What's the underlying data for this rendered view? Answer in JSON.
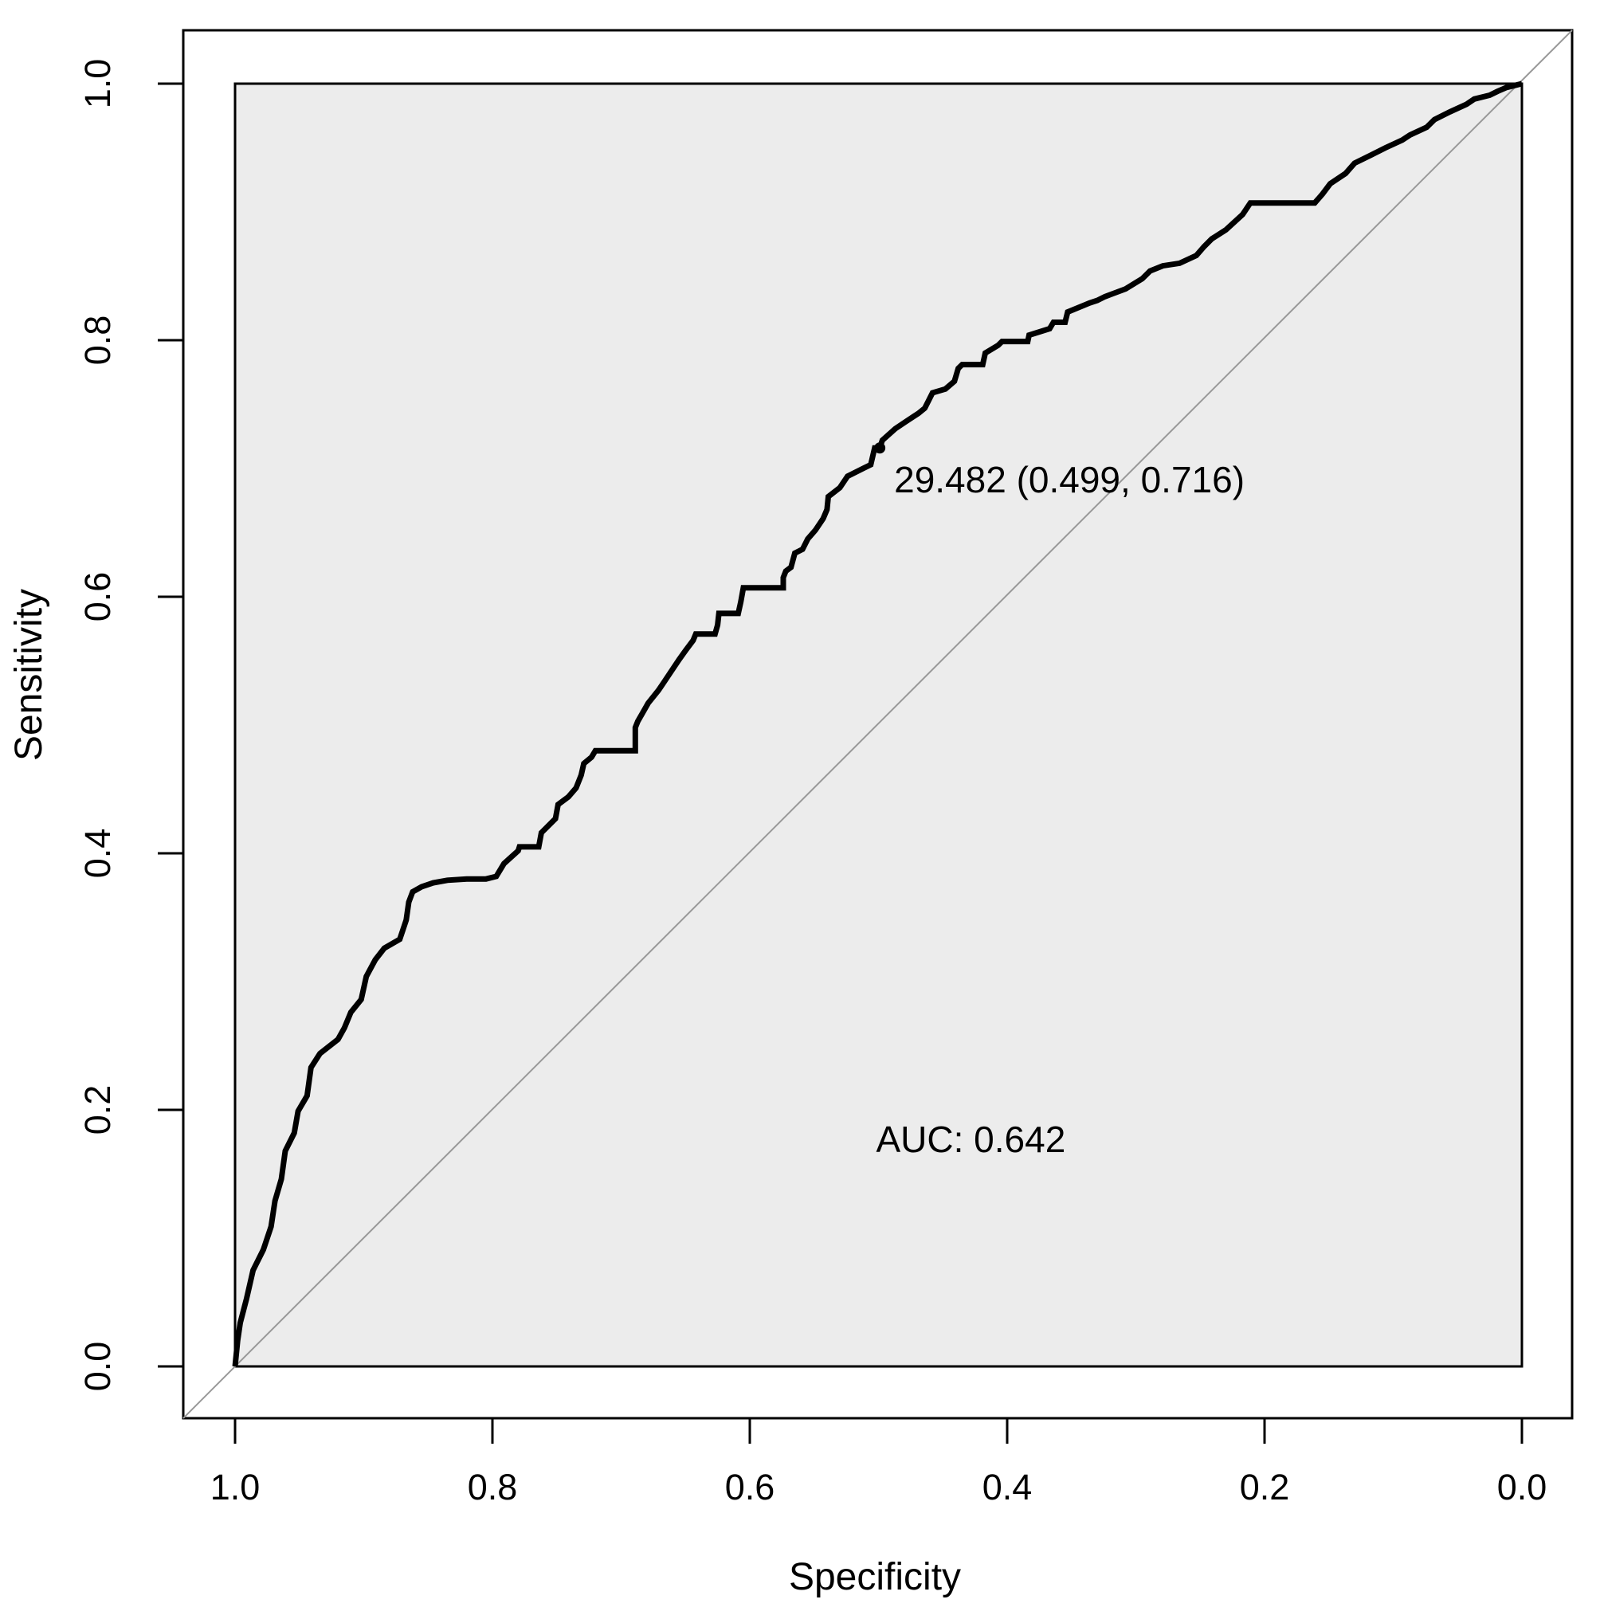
{
  "chart_data": {
    "type": "line",
    "subtype": "roc-curve",
    "xlabel": "Specificity",
    "ylabel": "Sensitivity",
    "x_axis": {
      "reversed": true,
      "range": [
        1.0,
        0.0
      ],
      "tick_values": [
        1.0,
        0.8,
        0.6,
        0.4,
        0.2,
        0.0
      ],
      "tick_labels": [
        "1.0",
        "0.8",
        "0.6",
        "0.4",
        "0.2",
        "0.0"
      ]
    },
    "y_axis": {
      "range": [
        0.0,
        1.0
      ],
      "tick_values": [
        0.0,
        0.2,
        0.4,
        0.6,
        0.8,
        1.0
      ],
      "tick_labels": [
        "0.0",
        "0.2",
        "0.4",
        "0.6",
        "0.8",
        "1.0"
      ]
    },
    "grid": false,
    "shaded_unit_square": true,
    "identity_line": true,
    "auc": {
      "label": "AUC: 0.642",
      "value": 0.642,
      "anchor": {
        "specificity": 0.5,
        "sensitivity": 0.177
      }
    },
    "threshold": {
      "label": "29.482 (0.499, 0.716)",
      "threshold_value": 29.482,
      "specificity": 0.499,
      "sensitivity": 0.716
    },
    "colors": {
      "curve": "#000000",
      "plot_fill": "#ececec",
      "plot_border": "#000000",
      "identity_line": "#999999",
      "text": "#000000",
      "background": "#ffffff"
    },
    "series": [
      {
        "name": "ROC curve",
        "points_format": [
          "specificity",
          "sensitivity"
        ],
        "points": [
          [
            1.0,
            0.0
          ],
          [
            0.998,
            0.02
          ],
          [
            0.996,
            0.034
          ],
          [
            0.991,
            0.053
          ],
          [
            0.986,
            0.075
          ],
          [
            0.978,
            0.091
          ],
          [
            0.972,
            0.109
          ],
          [
            0.969,
            0.129
          ],
          [
            0.964,
            0.146
          ],
          [
            0.961,
            0.168
          ],
          [
            0.954,
            0.182
          ],
          [
            0.951,
            0.199
          ],
          [
            0.944,
            0.211
          ],
          [
            0.941,
            0.233
          ],
          [
            0.934,
            0.244
          ],
          [
            0.92,
            0.255
          ],
          [
            0.915,
            0.264
          ],
          [
            0.91,
            0.276
          ],
          [
            0.902,
            0.286
          ],
          [
            0.898,
            0.304
          ],
          [
            0.891,
            0.317
          ],
          [
            0.884,
            0.326
          ],
          [
            0.872,
            0.333
          ],
          [
            0.867,
            0.348
          ],
          [
            0.865,
            0.362
          ],
          [
            0.862,
            0.37
          ],
          [
            0.855,
            0.374
          ],
          [
            0.846,
            0.377
          ],
          [
            0.835,
            0.379
          ],
          [
            0.82,
            0.38
          ],
          [
            0.805,
            0.38
          ],
          [
            0.797,
            0.382
          ],
          [
            0.791,
            0.392
          ],
          [
            0.78,
            0.402
          ],
          [
            0.779,
            0.405
          ],
          [
            0.764,
            0.405
          ],
          [
            0.762,
            0.416
          ],
          [
            0.751,
            0.427
          ],
          [
            0.749,
            0.438
          ],
          [
            0.741,
            0.444
          ],
          [
            0.735,
            0.451
          ],
          [
            0.731,
            0.461
          ],
          [
            0.729,
            0.47
          ],
          [
            0.723,
            0.475
          ],
          [
            0.72,
            0.48
          ],
          [
            0.689,
            0.48
          ],
          [
            0.689,
            0.498
          ],
          [
            0.687,
            0.503
          ],
          [
            0.683,
            0.51
          ],
          [
            0.679,
            0.517
          ],
          [
            0.671,
            0.527
          ],
          [
            0.667,
            0.533
          ],
          [
            0.663,
            0.539
          ],
          [
            0.655,
            0.551
          ],
          [
            0.65,
            0.558
          ],
          [
            0.644,
            0.566
          ],
          [
            0.642,
            0.571
          ],
          [
            0.627,
            0.571
          ],
          [
            0.625,
            0.578
          ],
          [
            0.624,
            0.587
          ],
          [
            0.609,
            0.587
          ],
          [
            0.607,
            0.596
          ],
          [
            0.605,
            0.607
          ],
          [
            0.574,
            0.607
          ],
          [
            0.574,
            0.615
          ],
          [
            0.572,
            0.62
          ],
          [
            0.568,
            0.623
          ],
          [
            0.565,
            0.634
          ],
          [
            0.559,
            0.637
          ],
          [
            0.555,
            0.645
          ],
          [
            0.549,
            0.652
          ],
          [
            0.543,
            0.661
          ],
          [
            0.54,
            0.668
          ],
          [
            0.539,
            0.678
          ],
          [
            0.53,
            0.685
          ],
          [
            0.524,
            0.694
          ],
          [
            0.512,
            0.7
          ],
          [
            0.506,
            0.703
          ],
          [
            0.503,
            0.716
          ],
          [
            0.499,
            0.716
          ],
          [
            0.497,
            0.722
          ],
          [
            0.487,
            0.731
          ],
          [
            0.478,
            0.737
          ],
          [
            0.469,
            0.743
          ],
          [
            0.464,
            0.747
          ],
          [
            0.458,
            0.759
          ],
          [
            0.448,
            0.762
          ],
          [
            0.441,
            0.768
          ],
          [
            0.438,
            0.778
          ],
          [
            0.435,
            0.781
          ],
          [
            0.419,
            0.781
          ],
          [
            0.417,
            0.79
          ],
          [
            0.407,
            0.796
          ],
          [
            0.404,
            0.799
          ],
          [
            0.384,
            0.799
          ],
          [
            0.383,
            0.804
          ],
          [
            0.367,
            0.809
          ],
          [
            0.364,
            0.814
          ],
          [
            0.355,
            0.814
          ],
          [
            0.353,
            0.822
          ],
          [
            0.336,
            0.829
          ],
          [
            0.33,
            0.831
          ],
          [
            0.324,
            0.834
          ],
          [
            0.308,
            0.84
          ],
          [
            0.295,
            0.848
          ],
          [
            0.289,
            0.854
          ],
          [
            0.279,
            0.858
          ],
          [
            0.266,
            0.86
          ],
          [
            0.253,
            0.866
          ],
          [
            0.247,
            0.873
          ],
          [
            0.241,
            0.879
          ],
          [
            0.23,
            0.886
          ],
          [
            0.217,
            0.898
          ],
          [
            0.211,
            0.907
          ],
          [
            0.161,
            0.907
          ],
          [
            0.155,
            0.914
          ],
          [
            0.149,
            0.922
          ],
          [
            0.137,
            0.93
          ],
          [
            0.13,
            0.938
          ],
          [
            0.118,
            0.944
          ],
          [
            0.106,
            0.95
          ],
          [
            0.093,
            0.956
          ],
          [
            0.087,
            0.96
          ],
          [
            0.074,
            0.966
          ],
          [
            0.068,
            0.972
          ],
          [
            0.056,
            0.978
          ],
          [
            0.043,
            0.984
          ],
          [
            0.037,
            0.988
          ],
          [
            0.025,
            0.991
          ],
          [
            0.019,
            0.994
          ],
          [
            0.012,
            0.997
          ],
          [
            0.0,
            1.0
          ]
        ]
      }
    ]
  }
}
